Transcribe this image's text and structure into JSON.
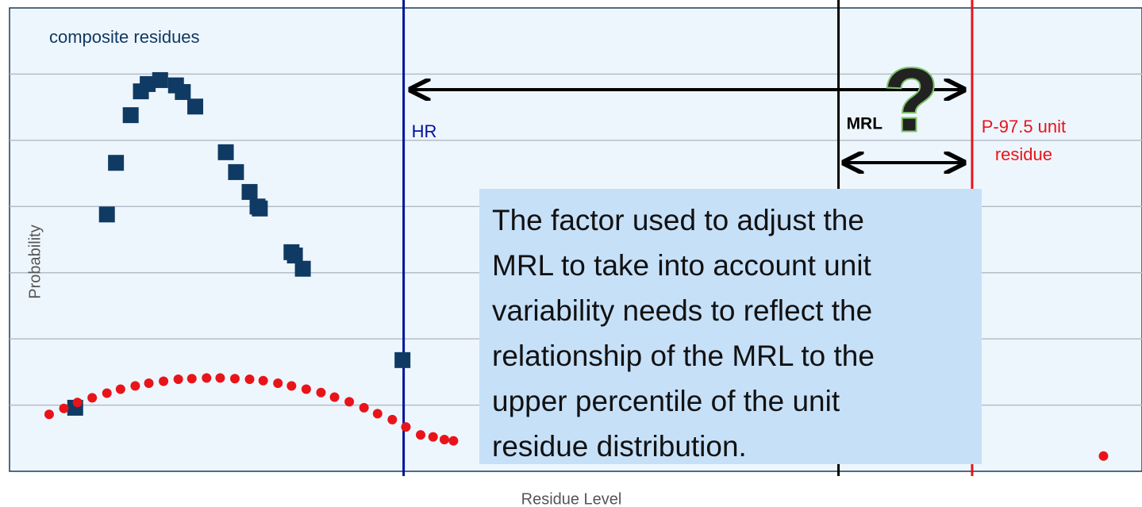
{
  "chart_data": {
    "type": "scatter",
    "xlabel": "Residue Level",
    "ylabel": "Probability",
    "xlim": [
      0,
      100
    ],
    "ylim": [
      0,
      7
    ],
    "yticks": [
      1,
      2,
      3,
      4,
      5,
      6
    ],
    "grid": true,
    "series": [
      {
        "name": "composite residues",
        "color": "#0f3a63",
        "marker": "square",
        "x": [
          5.8,
          8.6,
          9.4,
          10.7,
          11.6,
          12.2,
          13.3,
          14.7,
          15.3,
          16.4,
          19.1,
          20.0,
          21.2,
          21.9,
          22.1,
          24.9,
          25.2,
          25.9,
          34.7
        ],
        "values": [
          0.96,
          3.88,
          4.66,
          5.38,
          5.74,
          5.85,
          5.91,
          5.83,
          5.73,
          5.51,
          4.82,
          4.52,
          4.22,
          4.0,
          3.97,
          3.31,
          3.26,
          3.06,
          1.68
        ]
      },
      {
        "color": "#e8141a",
        "marker": "circle",
        "x": [
          3.5,
          4.8,
          6.0,
          7.3,
          8.6,
          9.8,
          11.1,
          12.3,
          13.6,
          14.9,
          16.1,
          17.4,
          18.6,
          19.9,
          21.2,
          22.4,
          23.7,
          24.9,
          26.2,
          27.5,
          28.7,
          30.0,
          31.3,
          32.5,
          33.8,
          35.0,
          36.3,
          37.4,
          38.4,
          39.2,
          96.6
        ],
        "values": [
          0.86,
          0.95,
          1.04,
          1.11,
          1.18,
          1.24,
          1.29,
          1.33,
          1.36,
          1.39,
          1.4,
          1.41,
          1.41,
          1.4,
          1.39,
          1.37,
          1.33,
          1.29,
          1.24,
          1.19,
          1.12,
          1.05,
          0.96,
          0.87,
          0.78,
          0.67,
          0.55,
          0.52,
          0.48,
          0.46,
          0.23
        ]
      }
    ],
    "vlines": [
      {
        "x": 34.8,
        "label": "HR",
        "color": "#00129a"
      },
      {
        "x": 73.2,
        "label": "MRL",
        "color": "#000000"
      },
      {
        "x": 85.0,
        "label": [
          "P-97.5 unit",
          "residue"
        ],
        "color": "#e8141a"
      }
    ],
    "symbol": "?",
    "note_lines": [
      "The factor used to adjust the",
      "MRL to take into account unit",
      "variability needs to reflect the",
      "relationship of the MRL to the",
      "upper percentile of the unit",
      "residue distribution."
    ]
  }
}
